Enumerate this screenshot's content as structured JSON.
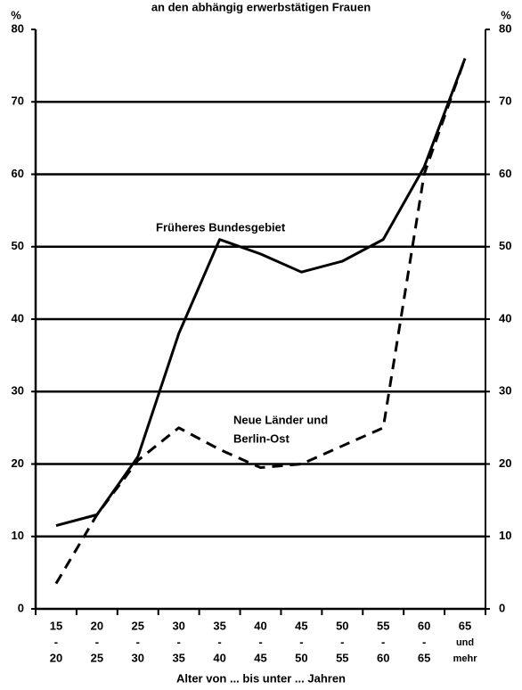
{
  "chart_data": {
    "type": "line",
    "title": "an den abhängig erwerbstätigen Frauen",
    "y_unit": "%",
    "y2_unit": "%",
    "x_label": "Alter von ... bis unter ... Jahren",
    "categories": [
      [
        "15",
        "-",
        "20"
      ],
      [
        "20",
        "-",
        "25"
      ],
      [
        "25",
        "-",
        "30"
      ],
      [
        "30",
        "-",
        "35"
      ],
      [
        "35",
        "-",
        "40"
      ],
      [
        "40",
        "-",
        "45"
      ],
      [
        "45",
        "-",
        "50"
      ],
      [
        "50",
        "-",
        "55"
      ],
      [
        "55",
        "-",
        "60"
      ],
      [
        "60",
        "-",
        "65"
      ],
      [
        "65",
        "und",
        "mehr"
      ]
    ],
    "series": [
      {
        "name": "Früheres Bundesgebiet",
        "color": "#000000",
        "style": "solid",
        "values": [
          11.5,
          13,
          21,
          38,
          51,
          49,
          46.5,
          48,
          51,
          61,
          76
        ]
      },
      {
        "name": "Neue Länder und Berlin-Ost",
        "name_lines": [
          "Neue Länder und",
          "Berlin-Ost"
        ],
        "color": "#000000",
        "style": "dashed",
        "values": [
          3.5,
          13,
          20.5,
          25,
          22,
          19.5,
          20,
          22.5,
          25,
          60,
          76
        ]
      }
    ],
    "ylim": [
      0,
      80
    ],
    "yticks": [
      0,
      10,
      20,
      30,
      40,
      50,
      60,
      70,
      80
    ],
    "y2lim": [
      0,
      80
    ],
    "y2ticks": [
      0,
      10,
      20,
      30,
      40,
      50,
      60,
      70,
      80
    ],
    "grid": true
  }
}
